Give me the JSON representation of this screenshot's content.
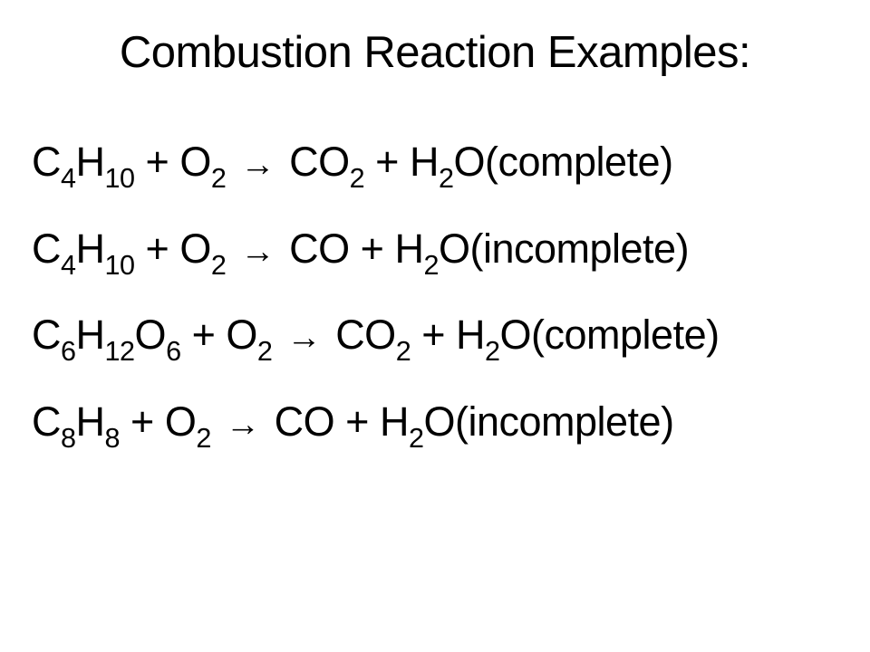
{
  "title": "Combustion Reaction Examples:",
  "background_color": "#ffffff",
  "text_color": "#000000",
  "title_fontsize": 49,
  "equation_fontsize": 45,
  "font_family": "Arial",
  "equations": [
    {
      "reactants": [
        {
          "formula": "C4H10",
          "elements": [
            {
              "sym": "C",
              "sub": "4"
            },
            {
              "sym": "H",
              "sub": "10"
            }
          ]
        },
        {
          "formula": "O2",
          "elements": [
            {
              "sym": "O",
              "sub": "2"
            }
          ]
        }
      ],
      "products": [
        {
          "formula": "CO2",
          "elements": [
            {
              "sym": "CO",
              "sub": "2"
            }
          ]
        },
        {
          "formula": "H2O",
          "elements": [
            {
              "sym": "H",
              "sub": "2"
            },
            {
              "sym": "O",
              "sub": ""
            }
          ]
        }
      ],
      "note": "(complete)",
      "extra_space_after_arrow": true
    },
    {
      "reactants": [
        {
          "formula": "C4H10",
          "elements": [
            {
              "sym": "C",
              "sub": "4"
            },
            {
              "sym": "H",
              "sub": "10"
            }
          ]
        },
        {
          "formula": "O2",
          "elements": [
            {
              "sym": "O",
              "sub": "2"
            }
          ]
        }
      ],
      "products": [
        {
          "formula": "CO",
          "elements": [
            {
              "sym": "CO",
              "sub": ""
            }
          ]
        },
        {
          "formula": "H2O",
          "elements": [
            {
              "sym": "H",
              "sub": "2"
            },
            {
              "sym": "O",
              "sub": ""
            }
          ]
        }
      ],
      "note": "(incomplete)",
      "extra_space_after_arrow": true
    },
    {
      "reactants": [
        {
          "formula": "C6H12O6",
          "elements": [
            {
              "sym": "C",
              "sub": "6"
            },
            {
              "sym": "H",
              "sub": "12"
            },
            {
              "sym": "O",
              "sub": "6"
            }
          ]
        },
        {
          "formula": "O2",
          "elements": [
            {
              "sym": "O",
              "sub": "2"
            }
          ]
        }
      ],
      "products": [
        {
          "formula": "CO2",
          "elements": [
            {
              "sym": "CO",
              "sub": "2"
            }
          ]
        },
        {
          "formula": "H2O",
          "elements": [
            {
              "sym": "H",
              "sub": "2"
            },
            {
              "sym": "O",
              "sub": ""
            }
          ]
        }
      ],
      "note": "(complete)",
      "extra_space_after_arrow": false
    },
    {
      "reactants": [
        {
          "formula": "C8H8",
          "elements": [
            {
              "sym": "C",
              "sub": "8"
            },
            {
              "sym": "H",
              "sub": "8"
            }
          ]
        },
        {
          "formula": "O2",
          "elements": [
            {
              "sym": "O",
              "sub": "2"
            }
          ]
        }
      ],
      "products": [
        {
          "formula": "CO",
          "elements": [
            {
              "sym": "CO",
              "sub": ""
            }
          ]
        },
        {
          "formula": "H2O",
          "elements": [
            {
              "sym": "H",
              "sub": "2"
            },
            {
              "sym": "O",
              "sub": ""
            }
          ]
        }
      ],
      "note": "(incomplete)",
      "extra_space_after_arrow": false
    }
  ],
  "arrow_symbol": "→",
  "plus_symbol": " + "
}
